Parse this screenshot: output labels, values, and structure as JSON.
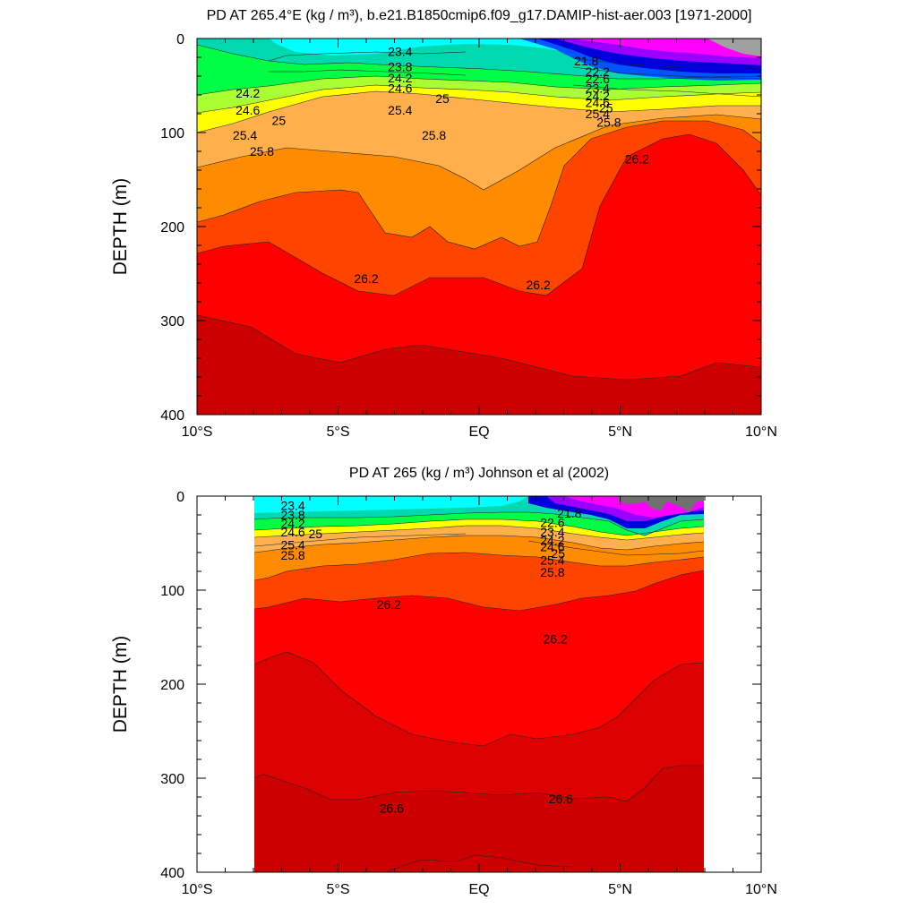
{
  "colors": {
    "magenta": "#ff00ff",
    "purple": "#9900ff",
    "blue": "#0000ff",
    "cyan": "#00ffff",
    "teal": "#00d8b0",
    "green": "#00ff44",
    "yellow": "#ffff00",
    "orange_light": "#ffb04c",
    "orange": "#ff8c00",
    "red_orange": "#ff4400",
    "red": "#ff0000",
    "dark_red": "#dd0000",
    "deeper_red": "#cc0000",
    "grey": "#a0a0a0"
  },
  "chart_data": [
    {
      "type": "heatmap",
      "title": "PD AT 265.4°E (kg / m³), b.e21.B1850cmip6.f09_g17.DAMIP-hist-aer.003 [1971-2000]",
      "ylabel": "DEPTH (m)",
      "xlabel": "",
      "x_ticks": [
        "10°S",
        "5°S",
        "EQ",
        "5°N",
        "10°N"
      ],
      "y_ticks": [
        "0",
        "100",
        "200",
        "300",
        "400"
      ],
      "xlim": [
        -10,
        10
      ],
      "ylim": [
        0,
        400
      ],
      "y_inverted": true,
      "contour_labels": [
        {
          "text": "23.4",
          "x": -2.8,
          "y": 14
        },
        {
          "text": "23.8",
          "x": -2.8,
          "y": 30
        },
        {
          "text": "24.2",
          "x": -2.8,
          "y": 42
        },
        {
          "text": "24.6",
          "x": -2.8,
          "y": 53
        },
        {
          "text": "25",
          "x": -1.3,
          "y": 64
        },
        {
          "text": "25.4",
          "x": -2.8,
          "y": 76
        },
        {
          "text": "25.8",
          "x": -1.6,
          "y": 103
        },
        {
          "text": "24.2",
          "x": -8.2,
          "y": 58
        },
        {
          "text": "24.6",
          "x": -8.2,
          "y": 76
        },
        {
          "text": "25",
          "x": -7.1,
          "y": 87
        },
        {
          "text": "25.4",
          "x": -8.3,
          "y": 103
        },
        {
          "text": "25.8",
          "x": -7.7,
          "y": 120
        },
        {
          "text": "21.8",
          "x": 3.8,
          "y": 24
        },
        {
          "text": "22.2",
          "x": 4.2,
          "y": 35
        },
        {
          "text": "22.6",
          "x": 4.2,
          "y": 43
        },
        {
          "text": "23.4",
          "x": 4.2,
          "y": 53
        },
        {
          "text": "24.2",
          "x": 4.2,
          "y": 61
        },
        {
          "text": "24.6",
          "x": 4.2,
          "y": 68
        },
        {
          "text": "25",
          "x": 4.5,
          "y": 74
        },
        {
          "text": "25.4",
          "x": 4.2,
          "y": 80
        },
        {
          "text": "25.8",
          "x": 4.6,
          "y": 89
        },
        {
          "text": "26.2",
          "x": 5.6,
          "y": 128
        },
        {
          "text": "26.2",
          "x": -4.0,
          "y": 255
        },
        {
          "text": "26.2",
          "x": 2.1,
          "y": 262
        }
      ]
    },
    {
      "type": "heatmap",
      "title": "PD AT 265 (kg / m³) Johnson et al (2002)",
      "ylabel": "DEPTH (m)",
      "xlabel": "",
      "x_ticks": [
        "10°S",
        "5°S",
        "EQ",
        "5°N",
        "10°N"
      ],
      "y_ticks": [
        "0",
        "100",
        "200",
        "300",
        "400"
      ],
      "xlim": [
        -10,
        10
      ],
      "ylim": [
        0,
        400
      ],
      "y_inverted": true,
      "data_xrange": [
        -8,
        8
      ],
      "contour_labels": [
        {
          "text": "23.4",
          "x": -6.6,
          "y": 10
        },
        {
          "text": "23.8",
          "x": -6.6,
          "y": 20
        },
        {
          "text": "24.2",
          "x": -6.6,
          "y": 29
        },
        {
          "text": "24.6",
          "x": -6.6,
          "y": 38
        },
        {
          "text": "25",
          "x": -5.8,
          "y": 40
        },
        {
          "text": "25.4",
          "x": -6.6,
          "y": 52
        },
        {
          "text": "25.8",
          "x": -6.6,
          "y": 63
        },
        {
          "text": "21.8",
          "x": 3.2,
          "y": 18
        },
        {
          "text": "22.6",
          "x": 2.6,
          "y": 28
        },
        {
          "text": "23.4",
          "x": 2.6,
          "y": 38
        },
        {
          "text": "24.2",
          "x": 2.6,
          "y": 47
        },
        {
          "text": "24.6",
          "x": 2.6,
          "y": 54
        },
        {
          "text": "25",
          "x": 2.8,
          "y": 61
        },
        {
          "text": "25.4",
          "x": 2.6,
          "y": 68
        },
        {
          "text": "25.8",
          "x": 2.6,
          "y": 81
        },
        {
          "text": "26.2",
          "x": -3.2,
          "y": 115
        },
        {
          "text": "26.2",
          "x": 2.7,
          "y": 152
        },
        {
          "text": "26.6",
          "x": -3.1,
          "y": 332
        },
        {
          "text": "26.6",
          "x": 2.9,
          "y": 322
        }
      ]
    }
  ]
}
